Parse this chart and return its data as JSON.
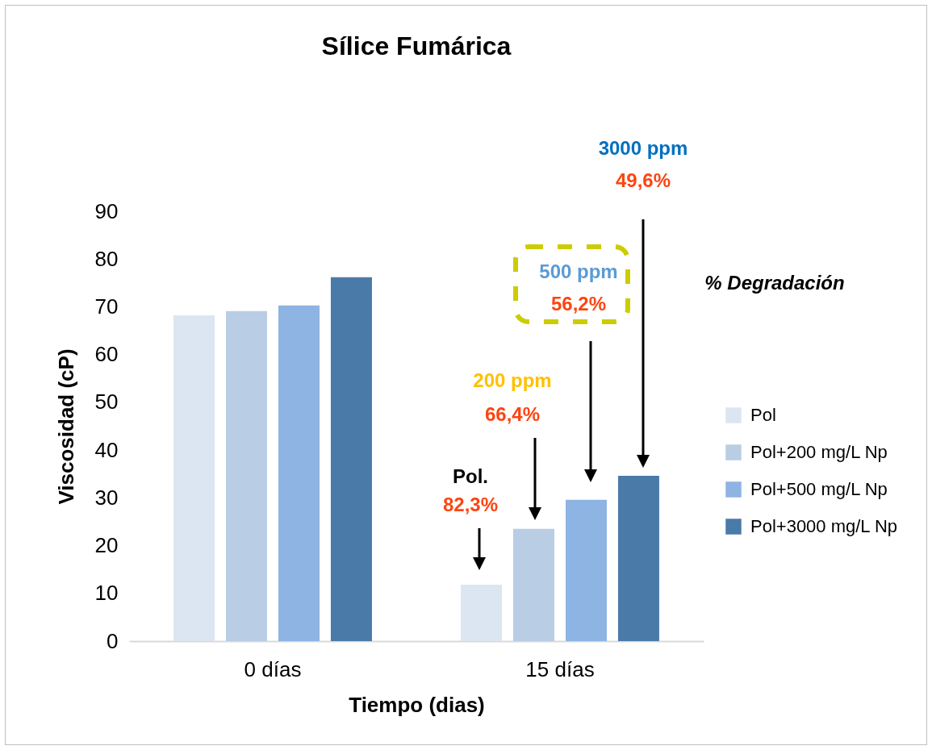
{
  "chart_data": {
    "type": "bar",
    "title": "Sílice Fumárica",
    "xlabel": "Tiempo (dias)",
    "ylabel": "Viscosidad (cP)",
    "categories": [
      "0 días",
      "15 días"
    ],
    "series": [
      {
        "name": "Pol",
        "color": "#dce6f2",
        "values": [
          68.2,
          11.8
        ]
      },
      {
        "name": "Pol+200 mg/L Np",
        "color": "#b9cde5",
        "values": [
          69.1,
          23.5
        ]
      },
      {
        "name": "Pol+500 mg/L Np",
        "color": "#8db4e2",
        "values": [
          70.3,
          29.6
        ]
      },
      {
        "name": "Pol+3000 mg/L Np",
        "color": "#4a7aa8",
        "values": [
          76.2,
          34.6
        ]
      }
    ],
    "ylim": [
      0,
      90
    ],
    "yticks": [
      0,
      10,
      20,
      30,
      40,
      50,
      60,
      70,
      80,
      90
    ],
    "grid": false,
    "legend": "right",
    "annotations": [
      "Pol.",
      "82,3%",
      "200 ppm",
      "66,4%",
      "500 ppm",
      "56,2%",
      "3000 ppm",
      "49,6%",
      "% Degradación"
    ]
  }
}
